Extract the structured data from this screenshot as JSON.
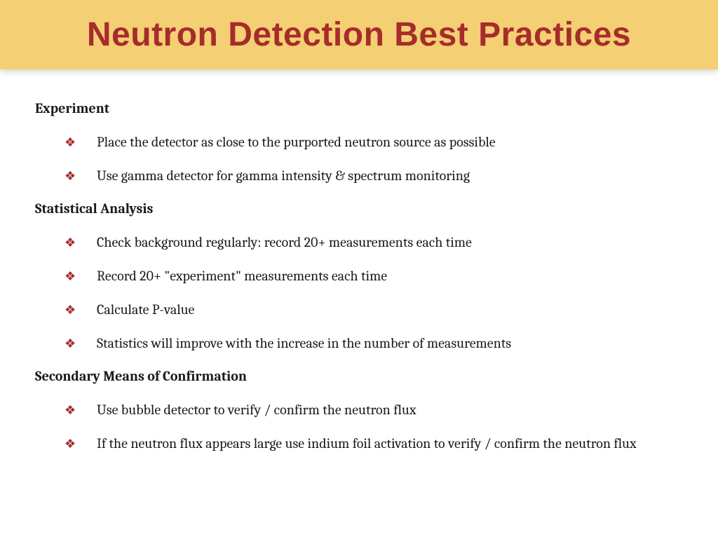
{
  "header": {
    "title": "Neutron Detection Best Practices",
    "background_color": "#f4cf73",
    "title_color": "#a62c2c",
    "title_fontsize": 48
  },
  "bullet_symbol": "❖",
  "bullet_color": "#a62c2c",
  "body_text_color": "#1a1a1a",
  "sections": [
    {
      "heading": "Experiment",
      "items": [
        "Place the detector as close to the purported neutron source as possible",
        "Use gamma detector for gamma intensity & spectrum monitoring"
      ]
    },
    {
      "heading": "Statistical Analysis",
      "items": [
        "Check background regularly: record 20+ measurements each time",
        "Record 20+ \"experiment\" measurements each time",
        "Calculate P-value",
        "Statistics will improve with the increase in the number of measurements"
      ]
    },
    {
      "heading": "Secondary Means of Confirmation",
      "items": [
        "Use bubble detector to verify / confirm the neutron flux",
        "If the neutron flux appears large use indium foil activation to verify / confirm the neutron flux"
      ]
    }
  ]
}
